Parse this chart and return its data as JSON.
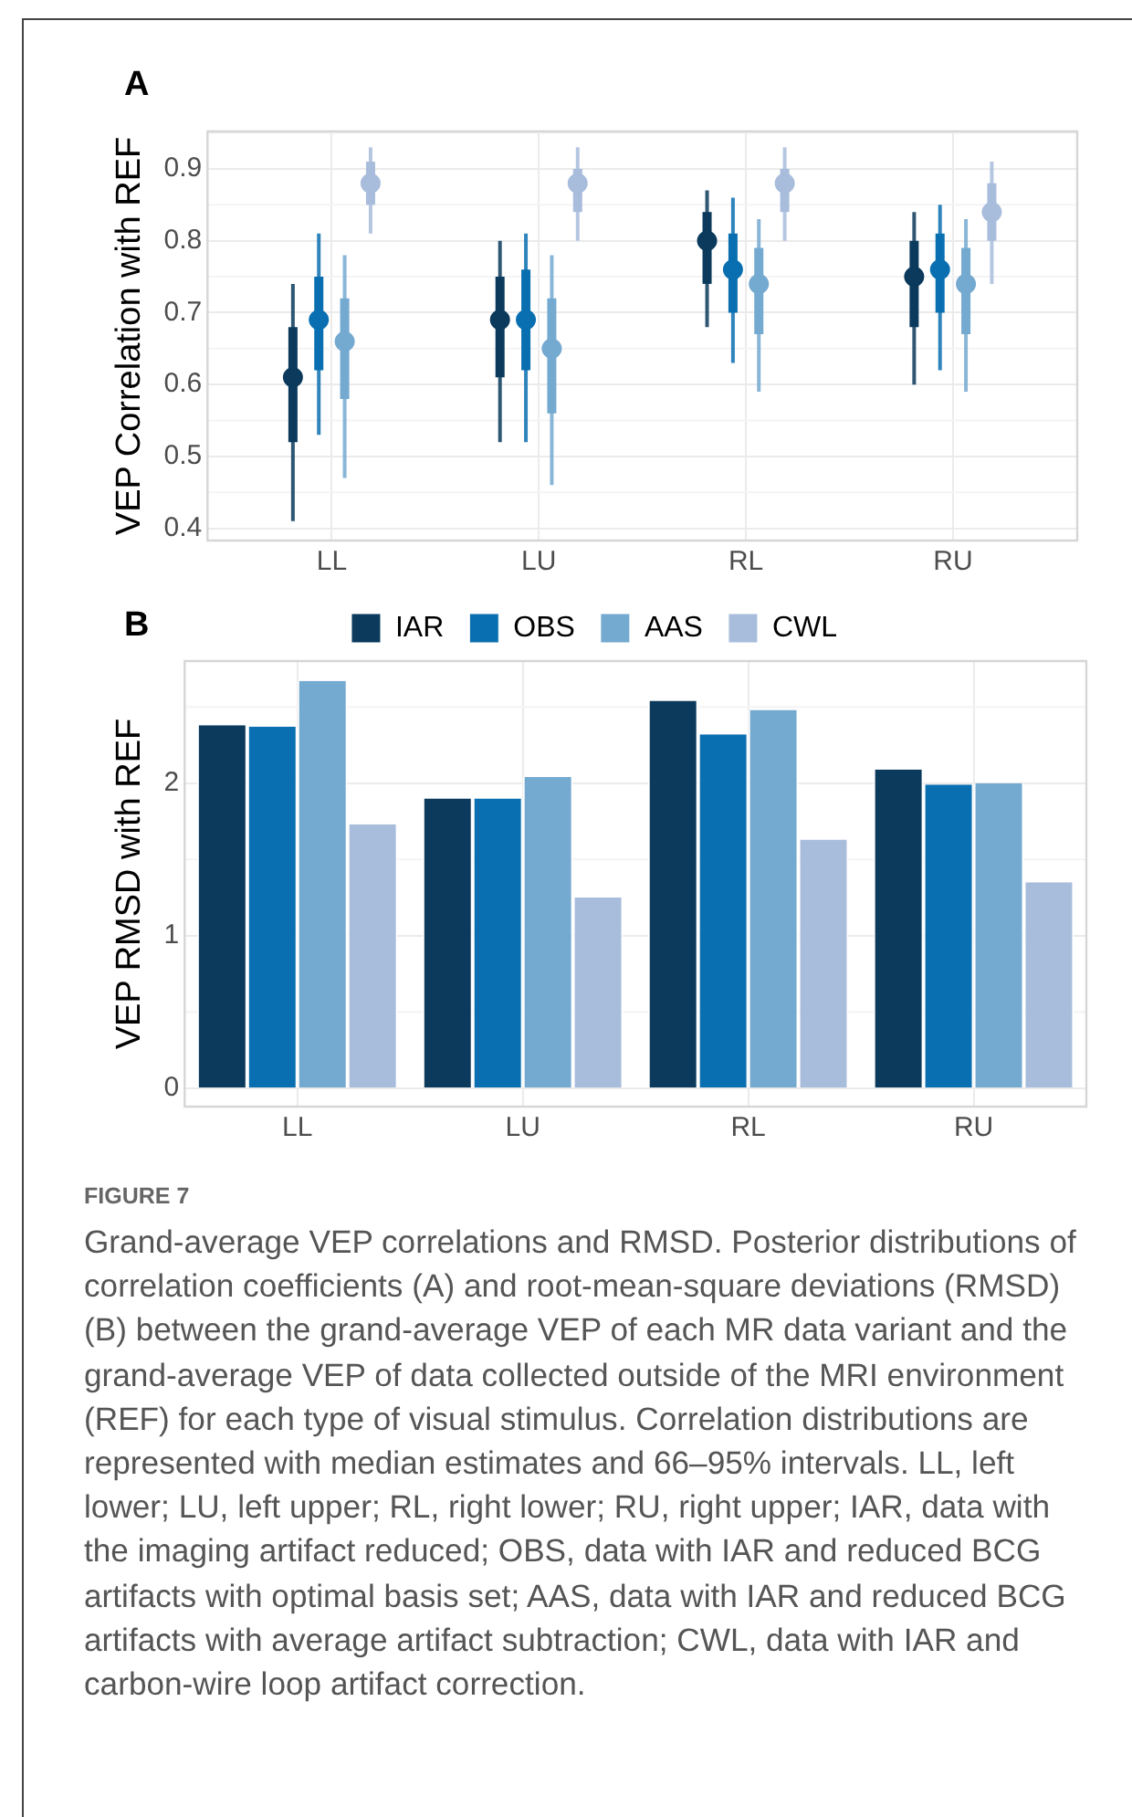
{
  "chart_data": [
    {
      "type": "box",
      "title": "A",
      "ylabel": "VEP Correlation with REF",
      "categories": [
        "LL",
        "LU",
        "RL",
        "RU"
      ],
      "ylim": [
        0.383,
        0.952
      ],
      "yticks": [
        0.4,
        0.5,
        0.6,
        0.7,
        0.8,
        0.9
      ],
      "grid": true,
      "legend": false,
      "marker": "circle",
      "series": [
        {
          "color": "#0b3a5c",
          "boxes": [
            {
              "low": 0.41,
              "q1": 0.52,
              "median": 0.61,
              "q3": 0.68,
              "high": 0.74
            },
            {
              "low": 0.52,
              "q1": 0.61,
              "median": 0.69,
              "q3": 0.75,
              "high": 0.8
            },
            {
              "low": 0.68,
              "q1": 0.74,
              "median": 0.8,
              "q3": 0.84,
              "high": 0.87
            },
            {
              "low": 0.6,
              "q1": 0.68,
              "median": 0.75,
              "q3": 0.8,
              "high": 0.84
            }
          ]
        },
        {
          "color": "#0a6fb0",
          "boxes": [
            {
              "low": 0.53,
              "q1": 0.62,
              "median": 0.69,
              "q3": 0.75,
              "high": 0.81
            },
            {
              "low": 0.52,
              "q1": 0.62,
              "median": 0.69,
              "q3": 0.76,
              "high": 0.81
            },
            {
              "low": 0.63,
              "q1": 0.7,
              "median": 0.76,
              "q3": 0.81,
              "high": 0.86
            },
            {
              "low": 0.62,
              "q1": 0.7,
              "median": 0.76,
              "q3": 0.81,
              "high": 0.85
            }
          ]
        },
        {
          "color": "#74a9d0",
          "boxes": [
            {
              "low": 0.47,
              "q1": 0.58,
              "median": 0.66,
              "q3": 0.72,
              "high": 0.78
            },
            {
              "low": 0.46,
              "q1": 0.56,
              "median": 0.65,
              "q3": 0.72,
              "high": 0.78
            },
            {
              "low": 0.59,
              "q1": 0.67,
              "median": 0.74,
              "q3": 0.79,
              "high": 0.83
            },
            {
              "low": 0.59,
              "q1": 0.67,
              "median": 0.74,
              "q3": 0.79,
              "high": 0.83
            }
          ]
        },
        {
          "color": "#a8bcdc",
          "boxes": [
            {
              "low": 0.81,
              "q1": 0.85,
              "median": 0.88,
              "q3": 0.91,
              "high": 0.93
            },
            {
              "low": 0.8,
              "q1": 0.84,
              "median": 0.88,
              "q3": 0.9,
              "high": 0.93
            },
            {
              "low": 0.8,
              "q1": 0.84,
              "median": 0.88,
              "q3": 0.9,
              "high": 0.93
            },
            {
              "low": 0.74,
              "q1": 0.8,
              "median": 0.84,
              "q3": 0.88,
              "high": 0.91
            }
          ]
        }
      ]
    },
    {
      "type": "bar",
      "title": "B",
      "ylabel": "VEP RMSD with REF",
      "categories": [
        "LL",
        "LU",
        "RL",
        "RU"
      ],
      "ylim": [
        -0.12,
        2.8
      ],
      "yticks": [
        0,
        1,
        2
      ],
      "grid": true,
      "legend": "top",
      "series": [
        {
          "name": "IAR",
          "color": "#0b3a5c",
          "values": [
            2.38,
            1.9,
            2.54,
            2.09
          ]
        },
        {
          "name": "OBS",
          "color": "#0a6fb0",
          "values": [
            2.37,
            1.9,
            2.32,
            1.99
          ]
        },
        {
          "name": "AAS",
          "color": "#74a9d0",
          "values": [
            2.67,
            2.04,
            2.48,
            2.0
          ]
        },
        {
          "name": "CWL",
          "color": "#a8bcdc",
          "values": [
            1.73,
            1.25,
            1.63,
            1.35
          ]
        }
      ],
      "annotations": [
        "FIGURE 7",
        "Grand-average VEP correlations and RMSD. Posterior distributions of correlation coefficients (A) and root-mean-square deviations (RMSD) (B) between the grand-average VEP of each MR data variant and the grand-average VEP of data collected outside of the MRI environment (REF) for each type of visual stimulus. Correlation distributions are represented with median estimates and 66–95% intervals. LL, left lower; LU, left upper; RL, right lower; RU, right upper; IAR, data with the imaging artifact reduced; OBS, data with IAR and reduced BCG artifacts with optimal basis set; AAS, data with IAR and reduced BCG artifacts with average artifact subtraction; CWL, data with IAR and carbon-wire loop artifact correction."
      ]
    }
  ]
}
